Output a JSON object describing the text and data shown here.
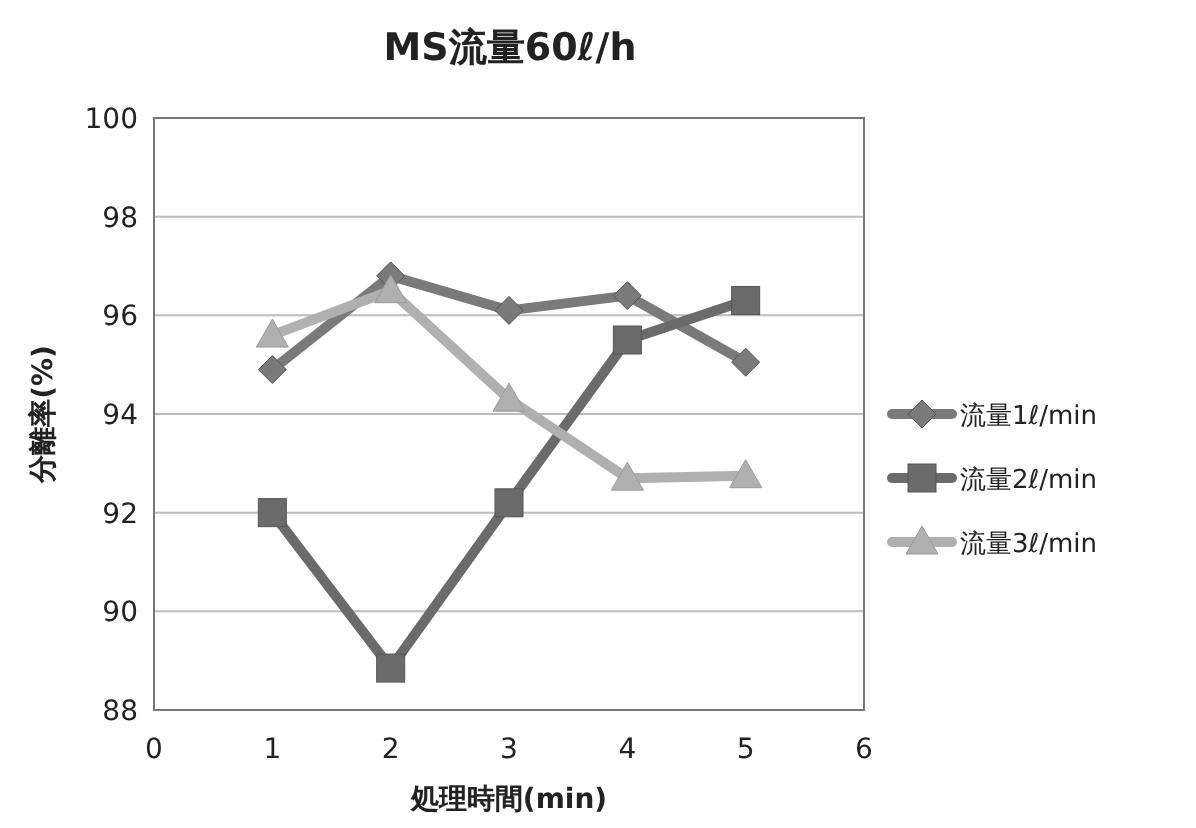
{
  "chart_data": {
    "type": "line",
    "title": "MS流量60ℓ/h",
    "xlabel": "処理時間(min)",
    "ylabel": "分離率(%)",
    "x": [
      1,
      2,
      3,
      4,
      5
    ],
    "series": [
      {
        "name": "流量1ℓ/min",
        "color": "#7a7a7a",
        "marker": "diamond",
        "values": [
          94.9,
          96.8,
          96.1,
          96.4,
          95.05
        ]
      },
      {
        "name": "流量2ℓ/min",
        "color": "#6b6b6b",
        "marker": "square",
        "values": [
          92.0,
          88.85,
          92.2,
          95.5,
          96.3
        ]
      },
      {
        "name": "流量3ℓ/min",
        "color": "#b0b0b0",
        "marker": "triangle",
        "values": [
          95.6,
          96.5,
          94.3,
          92.7,
          92.75
        ]
      }
    ],
    "xlim": [
      0,
      6
    ],
    "xticks": [
      0,
      1,
      2,
      3,
      4,
      5,
      6
    ],
    "ylim": [
      88,
      100
    ],
    "yticks": [
      88,
      90,
      92,
      94,
      96,
      98,
      100
    ],
    "grid": "y",
    "legend": "right"
  }
}
